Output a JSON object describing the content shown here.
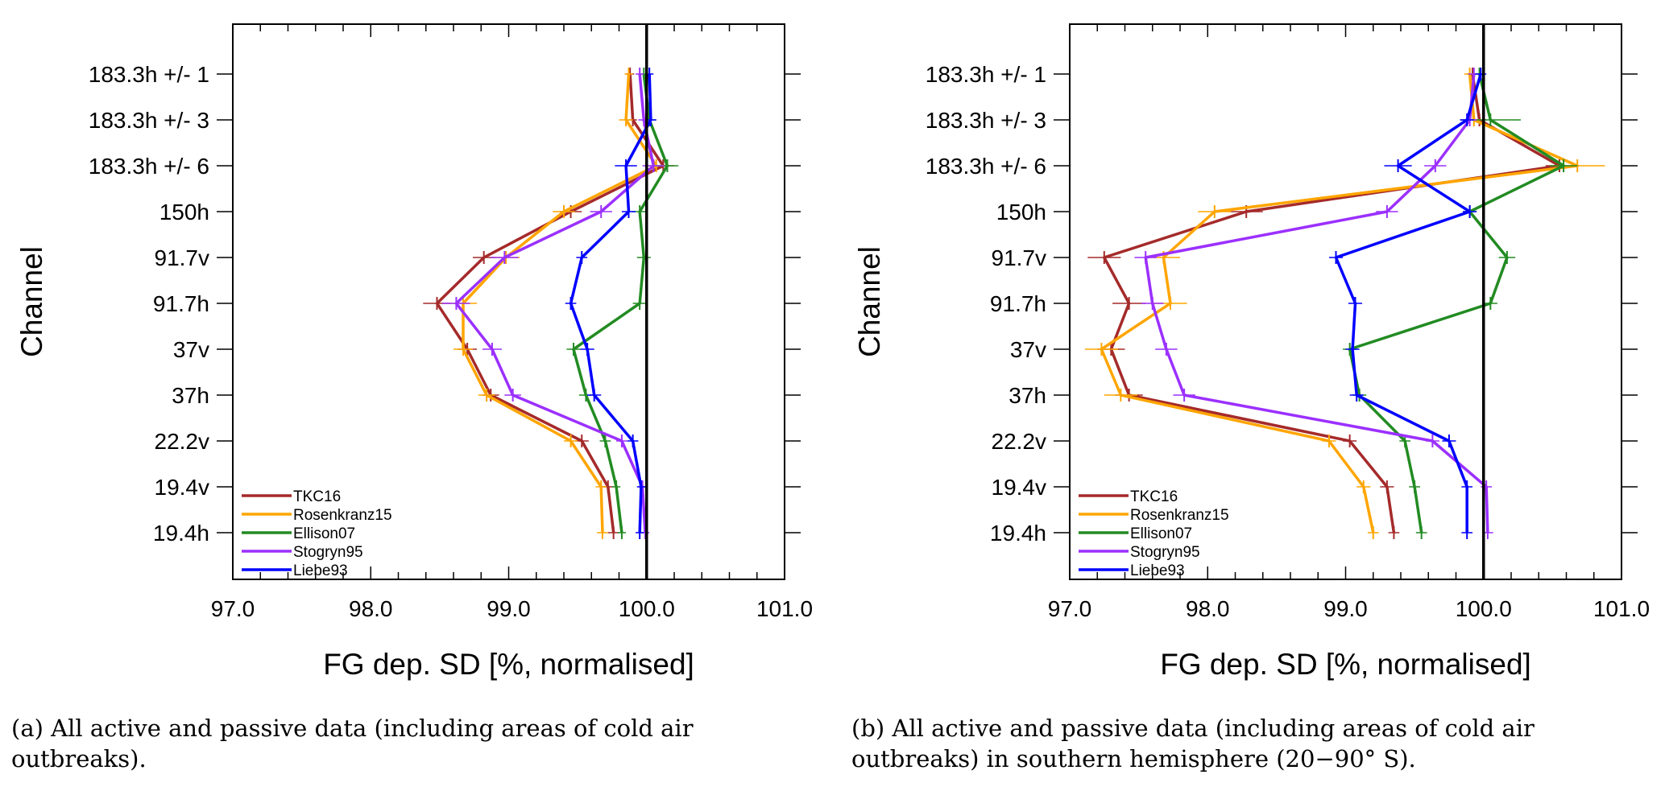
{
  "captions": {
    "a": {
      "line1": "(a) All active and passive data (including areas of cold air",
      "line2": "outbreaks)."
    },
    "b": {
      "line1": "(b) All active and passive data (including areas of cold air",
      "line2": "outbreaks) in southern hemisphere (20−90° S)."
    }
  },
  "chart_data": [
    {
      "type": "line",
      "title": "",
      "xlabel": "FG dep. SD [%, normalised]",
      "ylabel": "Channel",
      "xlim": [
        97.0,
        101.0
      ],
      "xticks": [
        "97.0",
        "98.0",
        "99.0",
        "100.0",
        "101.0"
      ],
      "reference_line_x": 100.0,
      "legend_position": "bottom-left",
      "channels": [
        "183.3h +/- 1",
        "183.3h +/- 3",
        "183.3h +/- 6",
        "150h",
        "91.7v",
        "91.7h",
        "37v",
        "37h",
        "22.2v",
        "19.4v",
        "19.4h"
      ],
      "series": [
        {
          "name": "TKC16",
          "color": "#a52a2a",
          "values": [
            99.88,
            99.9,
            100.12,
            99.45,
            98.82,
            98.48,
            98.7,
            98.87,
            99.53,
            99.72,
            99.76
          ],
          "err": [
            0.03,
            0.03,
            0.08,
            0.08,
            0.08,
            0.1,
            0.07,
            0.06,
            0.05,
            0.04,
            0.04
          ]
        },
        {
          "name": "Rosenkranz15",
          "color": "#ffa500",
          "values": [
            99.87,
            99.85,
            100.07,
            99.4,
            98.98,
            98.67,
            98.67,
            98.84,
            99.45,
            99.67,
            99.68
          ],
          "err": [
            0.03,
            0.05,
            0.08,
            0.08,
            0.1,
            0.1,
            0.07,
            0.06,
            0.05,
            0.04,
            0.04
          ]
        },
        {
          "name": "Ellison07",
          "color": "#228b22",
          "values": [
            99.98,
            100.02,
            100.15,
            99.95,
            99.98,
            99.95,
            99.47,
            99.56,
            99.7,
            99.78,
            99.82
          ],
          "err": [
            0.03,
            0.05,
            0.08,
            0.06,
            0.05,
            0.05,
            0.05,
            0.05,
            0.04,
            0.03,
            0.03
          ]
        },
        {
          "name": "Stogryn95",
          "color": "#9b30ff",
          "values": [
            99.95,
            99.98,
            100.05,
            99.67,
            98.97,
            98.62,
            98.88,
            99.03,
            99.82,
            99.97,
            99.99
          ],
          "err": [
            0.03,
            0.04,
            0.08,
            0.08,
            0.1,
            0.1,
            0.07,
            0.06,
            0.04,
            0.03,
            0.03
          ]
        },
        {
          "name": "Liebe93",
          "color": "#0000ff",
          "values": [
            100.02,
            100.03,
            99.85,
            99.87,
            99.53,
            99.45,
            99.57,
            99.62,
            99.9,
            99.96,
            99.95
          ],
          "err": [
            0.03,
            0.04,
            0.08,
            0.05,
            0.04,
            0.04,
            0.05,
            0.05,
            0.04,
            0.03,
            0.03
          ]
        }
      ]
    },
    {
      "type": "line",
      "title": "",
      "xlabel": "FG dep. SD [%, normalised]",
      "ylabel": "Channel",
      "xlim": [
        97.0,
        101.0
      ],
      "xticks": [
        "97.0",
        "98.0",
        "99.0",
        "100.0",
        "101.0"
      ],
      "reference_line_x": 100.0,
      "legend_position": "bottom-left",
      "channels": [
        "183.3h +/- 1",
        "183.3h +/- 3",
        "183.3h +/- 6",
        "150h",
        "91.7v",
        "91.7h",
        "37v",
        "37h",
        "22.2v",
        "19.4v",
        "19.4h"
      ],
      "series": [
        {
          "name": "TKC16",
          "color": "#a52a2a",
          "values": [
            99.92,
            99.97,
            100.55,
            98.28,
            97.25,
            97.43,
            97.3,
            97.43,
            99.03,
            99.3,
            99.35
          ],
          "err": [
            0.04,
            0.05,
            0.1,
            0.12,
            0.12,
            0.12,
            0.1,
            0.1,
            0.05,
            0.05,
            0.04
          ]
        },
        {
          "name": "Rosenkranz15",
          "color": "#ffa500",
          "values": [
            99.9,
            99.93,
            100.68,
            98.05,
            97.68,
            97.73,
            97.23,
            97.37,
            98.88,
            99.13,
            99.2
          ],
          "err": [
            0.04,
            0.05,
            0.2,
            0.12,
            0.12,
            0.12,
            0.12,
            0.12,
            0.05,
            0.05,
            0.04
          ]
        },
        {
          "name": "Ellison07",
          "color": "#228b22",
          "values": [
            99.97,
            100.05,
            100.58,
            99.9,
            100.17,
            100.05,
            99.03,
            99.1,
            99.43,
            99.5,
            99.55
          ],
          "err": [
            0.04,
            0.22,
            0.1,
            0.05,
            0.06,
            0.05,
            0.05,
            0.05,
            0.04,
            0.04,
            0.04
          ]
        },
        {
          "name": "Stogryn95",
          "color": "#9b30ff",
          "values": [
            99.93,
            99.9,
            99.65,
            99.3,
            97.55,
            97.6,
            97.7,
            97.83,
            99.63,
            100.02,
            100.03
          ],
          "err": [
            0.04,
            0.05,
            0.08,
            0.08,
            0.08,
            0.08,
            0.08,
            0.08,
            0.05,
            0.04,
            0.04
          ]
        },
        {
          "name": "Liebe93",
          "color": "#0000ff",
          "values": [
            99.98,
            99.88,
            99.38,
            99.9,
            98.93,
            99.07,
            99.05,
            99.08,
            99.75,
            99.88,
            99.88
          ],
          "err": [
            0.04,
            0.05,
            0.1,
            0.05,
            0.05,
            0.05,
            0.05,
            0.05,
            0.05,
            0.04,
            0.04
          ]
        }
      ]
    }
  ]
}
